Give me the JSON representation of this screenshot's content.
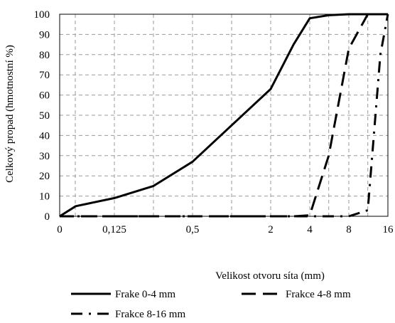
{
  "chart_data": {
    "type": "line",
    "title": "",
    "xlabel": "Velikost otvoru síta (mm)",
    "ylabel": "Celkový propad (hmotnostní %)",
    "x_scale": "log2 (0 at origin)",
    "x_ticks": [
      "0",
      "0,125",
      "0,5",
      "2",
      "4",
      "8",
      "16"
    ],
    "y_ticks": [
      "0",
      "10",
      "20",
      "30",
      "40",
      "50",
      "60",
      "70",
      "80",
      "90",
      "100"
    ],
    "ylim": [
      0,
      100
    ],
    "grid": "dashed vertical and horizontal",
    "legend_position": "bottom",
    "series": [
      {
        "name": "Frake 0-4 mm",
        "style": "solid",
        "color": "#000000",
        "x": [
          0,
          0.063,
          0.125,
          0.25,
          0.5,
          1,
          2,
          3,
          4,
          5.6,
          8,
          16
        ],
        "y": [
          0,
          5,
          9,
          15,
          27,
          45,
          63,
          85,
          98,
          99.5,
          100,
          100
        ]
      },
      {
        "name": "Frakce 4-8 mm",
        "style": "dashed",
        "color": "#000000",
        "x": [
          0,
          2,
          3,
          4,
          5.6,
          8,
          11.2,
          16
        ],
        "y": [
          0,
          0,
          0,
          0.5,
          30,
          83,
          100,
          100
        ]
      },
      {
        "name": "Frakce 8-16 mm",
        "style": "dash-dot",
        "color": "#000000",
        "x": [
          0,
          4,
          8,
          11.2,
          14,
          16
        ],
        "y": [
          0,
          0,
          0,
          3,
          80,
          100
        ]
      }
    ]
  }
}
